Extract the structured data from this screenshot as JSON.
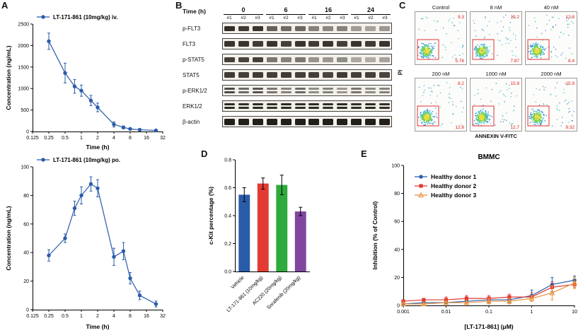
{
  "panels": {
    "A": "A",
    "B": "B",
    "C": "C",
    "D": "D",
    "E": "E"
  },
  "western_blot": {
    "header_label": "Time (h)",
    "time_groups": [
      "0",
      "6",
      "16",
      "24"
    ],
    "lane_labels": [
      "#1",
      "#2",
      "#3"
    ],
    "rows": [
      {
        "label": "p-FLT3",
        "bands_per_lane": 1,
        "band_height": 7,
        "intensities": [
          0.88,
          0.82,
          0.85,
          0.65,
          0.6,
          0.62,
          0.5,
          0.48,
          0.5,
          0.38,
          0.35,
          0.4
        ]
      },
      {
        "label": "FLT3",
        "bands_per_lane": 1,
        "band_height": 8,
        "intensities": [
          0.85,
          0.85,
          0.82,
          0.85,
          0.8,
          0.85,
          0.82,
          0.85,
          0.8,
          0.85,
          0.82,
          0.85
        ]
      },
      {
        "label": "p-STAT5",
        "bands_per_lane": 1,
        "band_height": 7,
        "intensities": [
          0.8,
          0.78,
          0.8,
          0.55,
          0.5,
          0.55,
          0.42,
          0.4,
          0.45,
          0.32,
          0.3,
          0.35
        ]
      },
      {
        "label": "STAT5",
        "bands_per_lane": 1,
        "band_height": 8,
        "intensities": [
          0.82,
          0.8,
          0.82,
          0.8,
          0.82,
          0.8,
          0.8,
          0.78,
          0.82,
          0.8,
          0.8,
          0.78
        ]
      },
      {
        "label": "p-ERK1/2",
        "bands_per_lane": 2,
        "band_height": 3,
        "intensities": [
          0.75,
          0.6,
          0.7,
          0.55,
          0.5,
          0.6,
          0.45,
          0.5,
          0.4,
          0.55,
          0.45,
          0.5
        ]
      },
      {
        "label": "ERK1/2",
        "bands_per_lane": 2,
        "band_height": 3,
        "intensities": [
          0.9,
          0.88,
          0.9,
          0.88,
          0.9,
          0.88,
          0.9,
          0.88,
          0.9,
          0.88,
          0.9,
          0.88
        ]
      },
      {
        "label": "β-actin",
        "bands_per_lane": 1,
        "band_height": 9,
        "intensities": [
          0.95,
          0.95,
          0.95,
          0.95,
          0.95,
          0.95,
          0.95,
          0.95,
          0.95,
          0.95,
          0.95,
          0.95
        ]
      }
    ]
  },
  "flow": {
    "ylabel": "PI",
    "xlabel": "ANNEXIN V-FITC",
    "panels": [
      {
        "name": "Control",
        "upper_right": "9.3",
        "lower_right": "5.76"
      },
      {
        "name": "8 nM",
        "upper_right": "10.2",
        "lower_right": "7.87"
      },
      {
        "name": "40 nM",
        "upper_right": "12.8",
        "lower_right": "8.4"
      },
      {
        "name": "200 nM",
        "upper_right": "8.2",
        "lower_right": "12.8"
      },
      {
        "name": "1000 nM",
        "upper_right": "15.9",
        "lower_right": "12.7"
      },
      {
        "name": "2000 nM",
        "upper_right": "15.9",
        "lower_right": "9.32"
      }
    ]
  },
  "chart_data": [
    {
      "id": "pk_iv",
      "type": "line",
      "xscale": "log",
      "xlabel": "Time (h)",
      "ylabel": "Concentration (ng/mL)",
      "x": [
        0.25,
        0.5,
        0.75,
        1,
        1.5,
        2,
        4,
        6,
        8,
        12,
        24
      ],
      "xlim": [
        0.125,
        32
      ],
      "xticks": [
        0.125,
        0.25,
        0.5,
        1,
        2,
        4,
        8,
        16,
        32
      ],
      "xtick_labels": [
        "0.125",
        "0.25",
        "0.5",
        "1",
        "2",
        "4",
        "8",
        "16",
        "32"
      ],
      "ylim": [
        0,
        2500
      ],
      "yticks": [
        0,
        500,
        1000,
        1500,
        2000,
        2500
      ],
      "series": [
        {
          "name": "LT-171-861 (10mg/kg) iv.",
          "color": "#2a5caa",
          "marker": "circle",
          "values": [
            2100,
            1360,
            1050,
            950,
            720,
            560,
            165,
            95,
            60,
            40,
            25
          ],
          "errors": [
            190,
            230,
            160,
            130,
            120,
            100,
            60,
            35,
            25,
            15,
            10
          ]
        }
      ]
    },
    {
      "id": "pk_po",
      "type": "line",
      "xscale": "log",
      "xlabel": "Time (h)",
      "ylabel": "Concentration (ng/mL)",
      "x": [
        0.25,
        0.5,
        0.75,
        1,
        1.5,
        2,
        4,
        6,
        8,
        12,
        24
      ],
      "xlim": [
        0.125,
        32
      ],
      "xticks": [
        0.125,
        0.25,
        0.5,
        1,
        2,
        4,
        8,
        16,
        32
      ],
      "xtick_labels": [
        "0.125",
        "0.25",
        "0.5",
        "1",
        "2",
        "4",
        "8",
        "16",
        "32"
      ],
      "ylim": [
        0,
        100
      ],
      "yticks": [
        0,
        20,
        40,
        60,
        80,
        100
      ],
      "series": [
        {
          "name": "LT-171-861 (10mg/kg) po.",
          "color": "#2a5caa",
          "marker": "circle",
          "values": [
            38,
            50,
            71,
            80,
            88,
            85,
            37,
            41,
            22,
            10,
            4
          ],
          "errors": [
            4,
            3,
            5,
            6,
            5,
            6,
            6,
            6,
            4,
            3,
            2
          ]
        }
      ]
    },
    {
      "id": "ckit",
      "type": "bar",
      "ylabel": "c-Kit percentage (%)",
      "categories": [
        "Vehicle",
        "LT-171-861 (10mg/kg)",
        "AC220 (20mg/kg)",
        "Sorafenib (20mg/kg)"
      ],
      "values": [
        0.55,
        0.63,
        0.62,
        0.43
      ],
      "errors": [
        0.05,
        0.04,
        0.07,
        0.03
      ],
      "colors": [
        "#2a5caa",
        "#e23b33",
        "#2faa3c",
        "#8046a0"
      ],
      "ylim": [
        0,
        0.8
      ],
      "yticks": [
        0,
        0.2,
        0.4,
        0.6,
        0.8
      ]
    },
    {
      "id": "bmmc",
      "type": "line",
      "title": "BMMC",
      "xscale": "log",
      "xlabel": "[LT-171-861] (μM)",
      "ylabel": "Inhibition (% of Control)",
      "x": [
        0.001,
        0.003,
        0.01,
        0.03,
        0.1,
        0.3,
        1,
        3,
        10
      ],
      "xlim": [
        0.001,
        10
      ],
      "xticks": [
        0.001,
        0.01,
        0.1,
        1,
        10
      ],
      "xtick_labels": [
        "0.001",
        "0.01",
        "0.1",
        "1",
        "10"
      ],
      "ylim": [
        0,
        100
      ],
      "yticks": [
        0,
        20,
        40,
        60,
        80,
        100
      ],
      "series": [
        {
          "name": "Healthy donor 1",
          "color": "#2a5caa",
          "marker": "circle",
          "values": [
            1,
            2,
            2,
            3,
            4,
            4,
            7,
            15,
            18
          ],
          "errors": [
            1,
            1,
            1,
            2,
            2,
            2,
            4,
            5,
            3
          ]
        },
        {
          "name": "Healthy donor 2",
          "color": "#e23b33",
          "marker": "square",
          "values": [
            3,
            4,
            4,
            5,
            5,
            6,
            6,
            13,
            15
          ],
          "errors": [
            1,
            1,
            2,
            2,
            2,
            2,
            3,
            4,
            2
          ]
        },
        {
          "name": "Healthy donor 3",
          "color": "#e8923a",
          "marker": "triangle",
          "values": [
            1,
            1,
            2,
            2,
            3,
            3,
            5,
            9,
            16
          ],
          "errors": [
            1,
            1,
            1,
            1,
            2,
            2,
            2,
            5,
            4
          ]
        }
      ]
    }
  ]
}
